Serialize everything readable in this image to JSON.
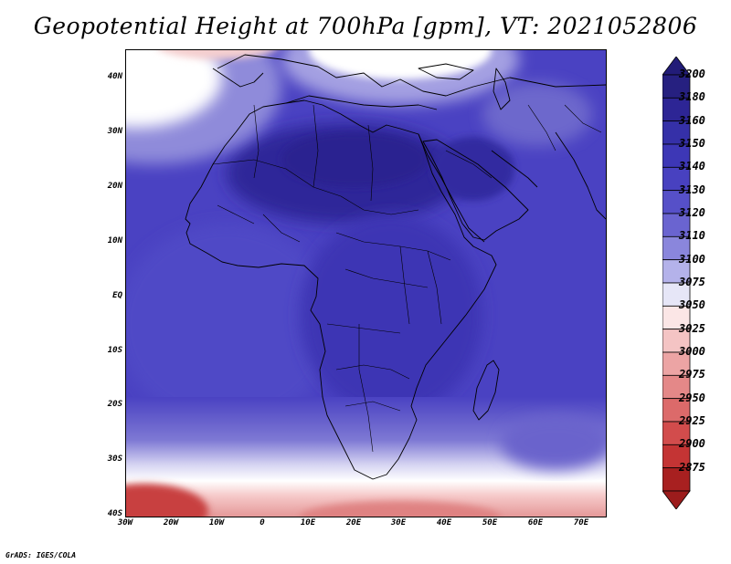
{
  "title": "Geopotential Height at 700hPa [gpm], VT: 2021052806",
  "credit": "GrADS: IGES/COLA",
  "axes": {
    "lat_ticks": [
      "40N",
      "30N",
      "20N",
      "10N",
      "EQ",
      "10S",
      "20S",
      "30S",
      "40S"
    ],
    "lon_ticks": [
      "30W",
      "20W",
      "10W",
      "0",
      "10E",
      "20E",
      "30E",
      "40E",
      "50E",
      "60E",
      "70E"
    ]
  },
  "colorbar": {
    "levels": [
      "3200",
      "3180",
      "3160",
      "3150",
      "3140",
      "3130",
      "3120",
      "3110",
      "3100",
      "3075",
      "3050",
      "3025",
      "3000",
      "2975",
      "2950",
      "2925",
      "2900",
      "2875"
    ],
    "colors": [
      "#262080",
      "#2d2595",
      "#3530a8",
      "#3d37b6",
      "#4841c0",
      "#5650c8",
      "#6a64d0",
      "#8a86dc",
      "#b4b2ea",
      "#e6e6f7",
      "#fbe6e6",
      "#f4c4c4",
      "#eca4a4",
      "#e48888",
      "#dc6a6a",
      "#d24c4c",
      "#c43434",
      "#a82020"
    ],
    "top_arrow_color": "#221c78",
    "bottom_arrow_color": "#9c1c1c"
  },
  "map_colors": {
    "ocean_base": "#4a42c2",
    "high_core": "#2a2296",
    "mid": "#3d35b4",
    "light_band": "#8e8ad9",
    "white_band": "#f4f4fb",
    "pink": "#f2c0c0",
    "red": "#d04848",
    "dark_red": "#b02828"
  }
}
